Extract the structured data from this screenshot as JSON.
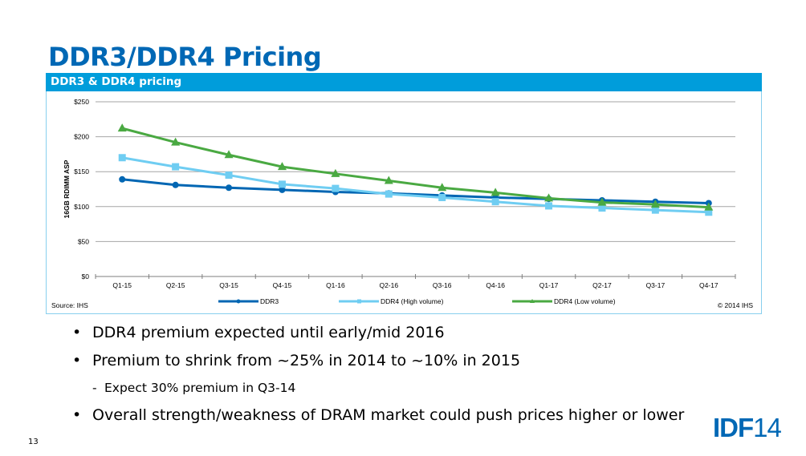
{
  "slide": {
    "title": "DDR3/DDR4 Pricing",
    "page_number": "13",
    "logo": {
      "bold": "IDF",
      "light": "14"
    },
    "bullets": [
      {
        "level": 1,
        "marker": "•",
        "text": "DDR4 premium expected until early/mid 2016"
      },
      {
        "level": 1,
        "marker": "•",
        "text": "Premium to shrink from ~25% in 2014 to ~10% in 2015"
      },
      {
        "level": 2,
        "marker": "-",
        "text": "Expect 30% premium in Q3-14"
      },
      {
        "level": 1,
        "marker": "•",
        "text": "Overall strength/weakness of DRAM market could push prices higher or lower"
      }
    ]
  },
  "colors": {
    "title": "#0068b5",
    "header_bar": "#009ddb",
    "ddr3": "#0066b3",
    "ddr4_high": "#6fcdf2",
    "ddr4_low": "#4aa942",
    "grid": "#a6a6a6"
  },
  "chart_data": {
    "type": "line",
    "title": "DDR3 & DDR4 pricing",
    "xlabel": "",
    "ylabel": "16GB RDIMM ASP",
    "ylim": [
      0,
      250
    ],
    "yticks": [
      0,
      50,
      100,
      150,
      200,
      250
    ],
    "ytick_labels": [
      "$0",
      "$50",
      "$100",
      "$150",
      "$200",
      "$250"
    ],
    "grid": true,
    "legend": "bottom",
    "source": "Source: IHS",
    "copyright": "© 2014 IHS",
    "categories": [
      "Q1-15",
      "Q2-15",
      "Q3-15",
      "Q4-15",
      "Q1-16",
      "Q2-16",
      "Q3-16",
      "Q4-16",
      "Q1-17",
      "Q2-17",
      "Q3-17",
      "Q4-17"
    ],
    "series": [
      {
        "name": "DDR3",
        "marker": "circle",
        "values": [
          139,
          131,
          127,
          124,
          121,
          119,
          116,
          113,
          111,
          109,
          107,
          105
        ]
      },
      {
        "name": "DDR4 (High volume)",
        "marker": "square",
        "values": [
          170,
          157,
          145,
          132,
          126,
          118,
          113,
          107,
          101,
          98,
          95,
          92
        ]
      },
      {
        "name": "DDR4 (Low volume)",
        "marker": "triangle",
        "values": [
          212,
          192,
          174,
          157,
          147,
          137,
          127,
          120,
          112,
          106,
          103,
          99
        ]
      }
    ]
  }
}
